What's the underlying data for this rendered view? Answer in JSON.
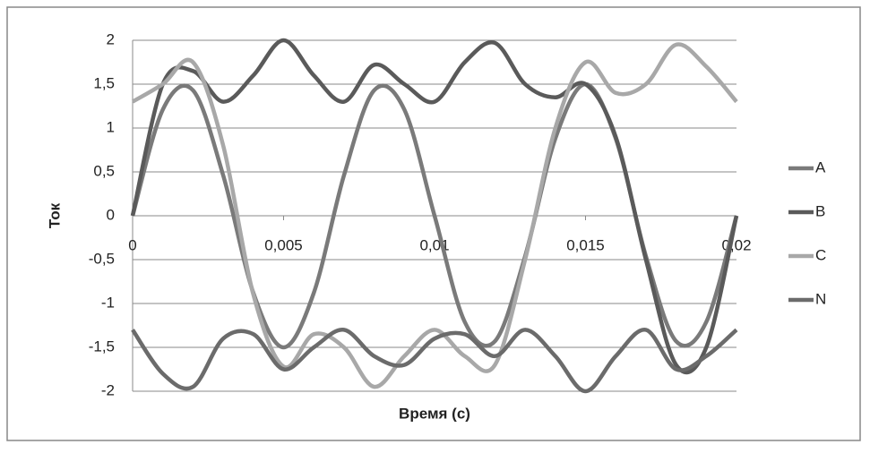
{
  "chart_data": {
    "type": "line",
    "x_label": "Время (с)",
    "y_label": "Ток",
    "x": [
      0,
      0.001,
      0.002,
      0.003,
      0.004,
      0.005,
      0.006,
      0.007,
      0.008,
      0.009,
      0.01,
      0.011,
      0.012,
      0.013,
      0.014,
      0.015,
      0.016,
      0.017,
      0.018,
      0.019,
      0.02
    ],
    "series": [
      {
        "name": "A",
        "color": "#7a7a7a",
        "values": [
          0,
          1.21,
          1.43,
          0.46,
          -0.88,
          -1.5,
          -0.88,
          0.46,
          1.43,
          1.21,
          0,
          -1.21,
          -1.43,
          -0.46,
          0.88,
          1.5,
          0.88,
          -0.46,
          -1.43,
          -1.21,
          0
        ]
      },
      {
        "name": "B",
        "color": "#5a5a5a",
        "values": [
          0,
          1.5,
          1.65,
          1.3,
          1.6,
          2.0,
          1.6,
          1.3,
          1.72,
          1.5,
          1.3,
          1.75,
          1.97,
          1.5,
          1.35,
          1.5,
          0.9,
          -0.5,
          -1.7,
          -1.5,
          0
        ]
      },
      {
        "name": "C",
        "color": "#a8a8a8",
        "values": [
          1.3,
          1.5,
          1.75,
          0.8,
          -0.9,
          -1.72,
          -1.35,
          -1.5,
          -1.95,
          -1.6,
          -1.3,
          -1.6,
          -1.7,
          -0.5,
          1.0,
          1.75,
          1.4,
          1.5,
          1.95,
          1.7,
          1.3
        ]
      },
      {
        "name": "N",
        "color": "#6b6b6b",
        "values": [
          -1.3,
          -1.8,
          -1.95,
          -1.4,
          -1.35,
          -1.75,
          -1.5,
          -1.3,
          -1.6,
          -1.7,
          -1.4,
          -1.35,
          -1.6,
          -1.3,
          -1.6,
          -2.0,
          -1.6,
          -1.3,
          -1.75,
          -1.6,
          -1.3
        ]
      }
    ],
    "xlim": [
      0,
      0.02
    ],
    "xticks": [
      0,
      {
        "value": 0.005,
        "label": "0,005"
      },
      {
        "value": 0.01,
        "label": "0,01"
      },
      {
        "value": 0.015,
        "label": "0,015"
      },
      {
        "value": 0.02,
        "label": "0,02"
      }
    ],
    "ylim": [
      -2,
      2
    ],
    "yticks": [
      -2,
      {
        "value": -1.5,
        "label": "-1,5"
      },
      -1,
      {
        "value": -0.5,
        "label": "-0,5"
      },
      0,
      {
        "value": 0.5,
        "label": "0,5"
      },
      1,
      {
        "value": 1.5,
        "label": "1,5"
      },
      2
    ],
    "grid": true,
    "legend": "right"
  }
}
